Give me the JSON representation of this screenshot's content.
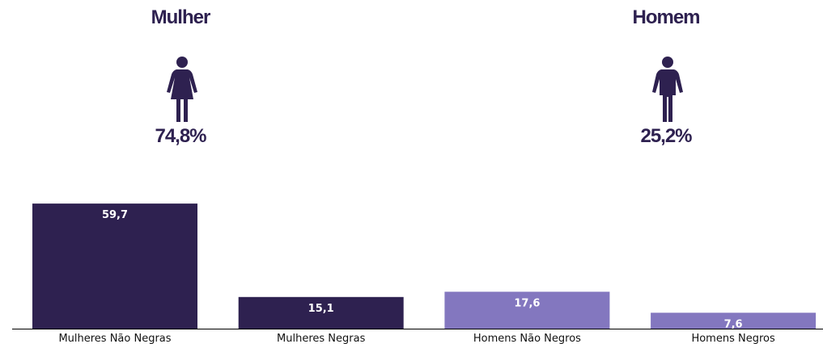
{
  "gender": {
    "female": {
      "title": "Mulher",
      "percent": "74,8%",
      "icon": "woman-icon"
    },
    "male": {
      "title": "Homem",
      "percent": "25,2%",
      "icon": "man-icon"
    }
  },
  "colors": {
    "dark": "#2e2150",
    "light": "#8377bf",
    "axis": "#000000"
  },
  "chart_data": {
    "type": "bar",
    "categories": [
      "Mulheres Não Negras",
      "Mulheres Negras",
      "Homens Não Negros",
      "Homens Negros"
    ],
    "values": [
      59.7,
      15.1,
      17.6,
      7.6
    ],
    "value_labels": [
      "59,7",
      "15,1",
      "17,6",
      "7,6"
    ],
    "bar_colors": [
      "#2e2150",
      "#2e2150",
      "#8377bf",
      "#8377bf"
    ],
    "title": "",
    "xlabel": "",
    "ylabel": "",
    "ylim": [
      0,
      60
    ],
    "grid": false,
    "legend": "none"
  }
}
